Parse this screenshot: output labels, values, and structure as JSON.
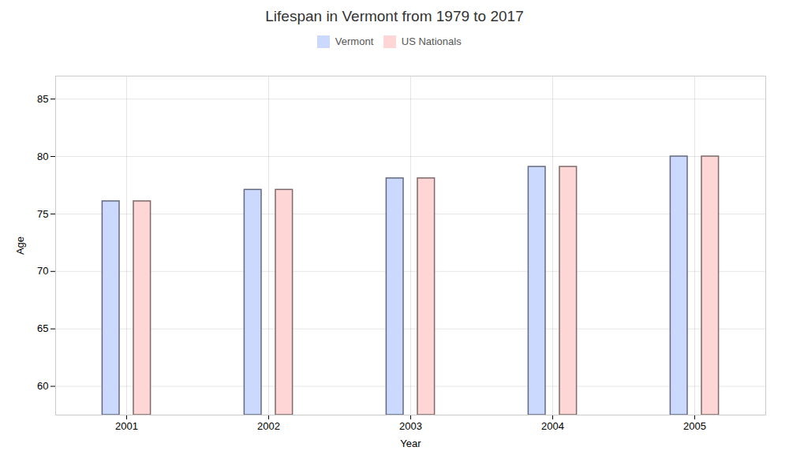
{
  "chart_data": {
    "type": "bar",
    "title": "Lifespan in Vermont from 1979 to 2017",
    "xlabel": "Year",
    "ylabel": "Age",
    "categories": [
      "2001",
      "2002",
      "2003",
      "2004",
      "2005"
    ],
    "series": [
      {
        "name": "Vermont",
        "color": "#ccd9ff",
        "values": [
          76.1,
          77.1,
          78.1,
          79.1,
          80.0
        ]
      },
      {
        "name": "US Nationals",
        "color": "#ffd6d6",
        "values": [
          76.1,
          77.1,
          78.1,
          79.1,
          80.0
        ]
      }
    ],
    "ylim": [
      57.5,
      87
    ],
    "yticks": [
      60,
      65,
      70,
      75,
      80,
      85
    ],
    "grid": true,
    "legend": "top"
  }
}
